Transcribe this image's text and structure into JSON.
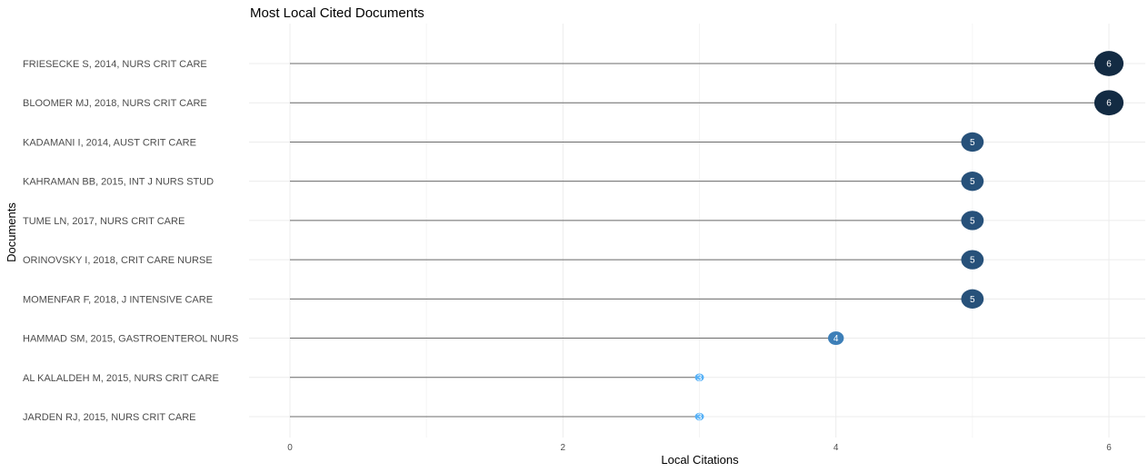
{
  "chart_data": {
    "type": "lollipop",
    "title": "Most Local Cited Documents",
    "xlabel": "Local Citations",
    "ylabel": "Documents",
    "xlim": [
      -0.3,
      6.2
    ],
    "xticks": [
      0,
      2,
      4,
      6
    ],
    "grid": true,
    "categories": [
      "FRIESECKE S, 2014, NURS CRIT CARE",
      "BLOOMER MJ, 2018, NURS CRIT CARE",
      "KADAMANI I, 2014, AUST CRIT CARE",
      "KAHRAMAN BB, 2015, INT J NURS STUD",
      "TUME LN, 2017, NURS CRIT CARE",
      "ORINOVSKY I, 2018, CRIT CARE NURSE",
      "MOMENFAR F, 2018, J INTENSIVE CARE",
      "HAMMAD SM, 2015, GASTROENTEROL NURS",
      "AL KALALDEH M, 2015, NURS CRIT CARE",
      "JARDEN RJ, 2015, NURS CRIT CARE"
    ],
    "values": [
      6,
      6,
      5,
      5,
      5,
      5,
      5,
      4,
      3,
      3
    ],
    "colors": {
      "3": "#56b1f7",
      "4": "#3d7fb8",
      "5": "#27517a",
      "6": "#132b43"
    }
  }
}
